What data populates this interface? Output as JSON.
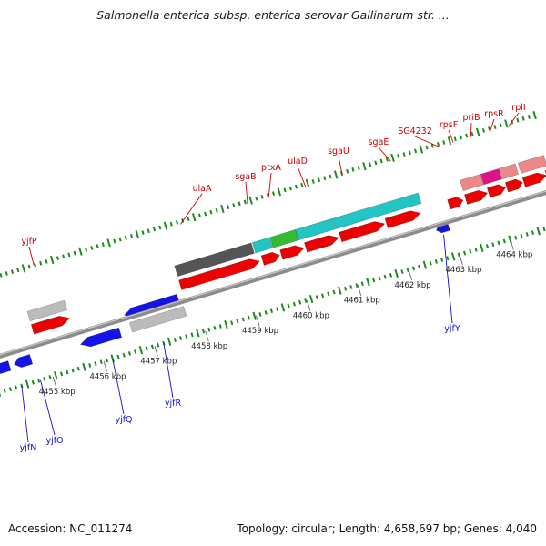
{
  "header": {
    "title": "Salmonella enterica subsp. enterica serovar Gallinarum str. ..."
  },
  "footer": {
    "accession": "Accession: NC_011274",
    "summary": "Topology: circular; Length: 4,658,697 bp; Genes: 4,040"
  },
  "colors": {
    "forward_gene": "#ee0000",
    "reverse_gene": "#1414e6",
    "pseudo_gene": "#bbbbbb",
    "tick": "#1f8a1f",
    "backbone": "#8c8c8c",
    "forward_label": "#cc0000",
    "reverse_label": "#1010cc",
    "operon_teal": "#22c4c4",
    "operon_dark": "#555555",
    "operon_green": "#33bb33",
    "operon_pink": "#ee8888",
    "operon_magenta": "#dd1188"
  },
  "kbp_ticks": [
    "4455 kbp",
    "4456 kbp",
    "4457 kbp",
    "4458 kbp",
    "4459 kbp",
    "4460 kbp",
    "4461 kbp",
    "4462 kbp",
    "4463 kbp",
    "4464 kbp"
  ],
  "forward_genes": [
    "yjfP",
    "ulaA",
    "sgaB",
    "ptxA",
    "ulaD",
    "sgaU",
    "sgaE",
    "SG4232",
    "rpsF",
    "priB",
    "rpsR",
    "rplI"
  ],
  "reverse_genes": [
    "yjfN",
    "yjfO",
    "yjfQ",
    "yjfR",
    "yjfY"
  ]
}
